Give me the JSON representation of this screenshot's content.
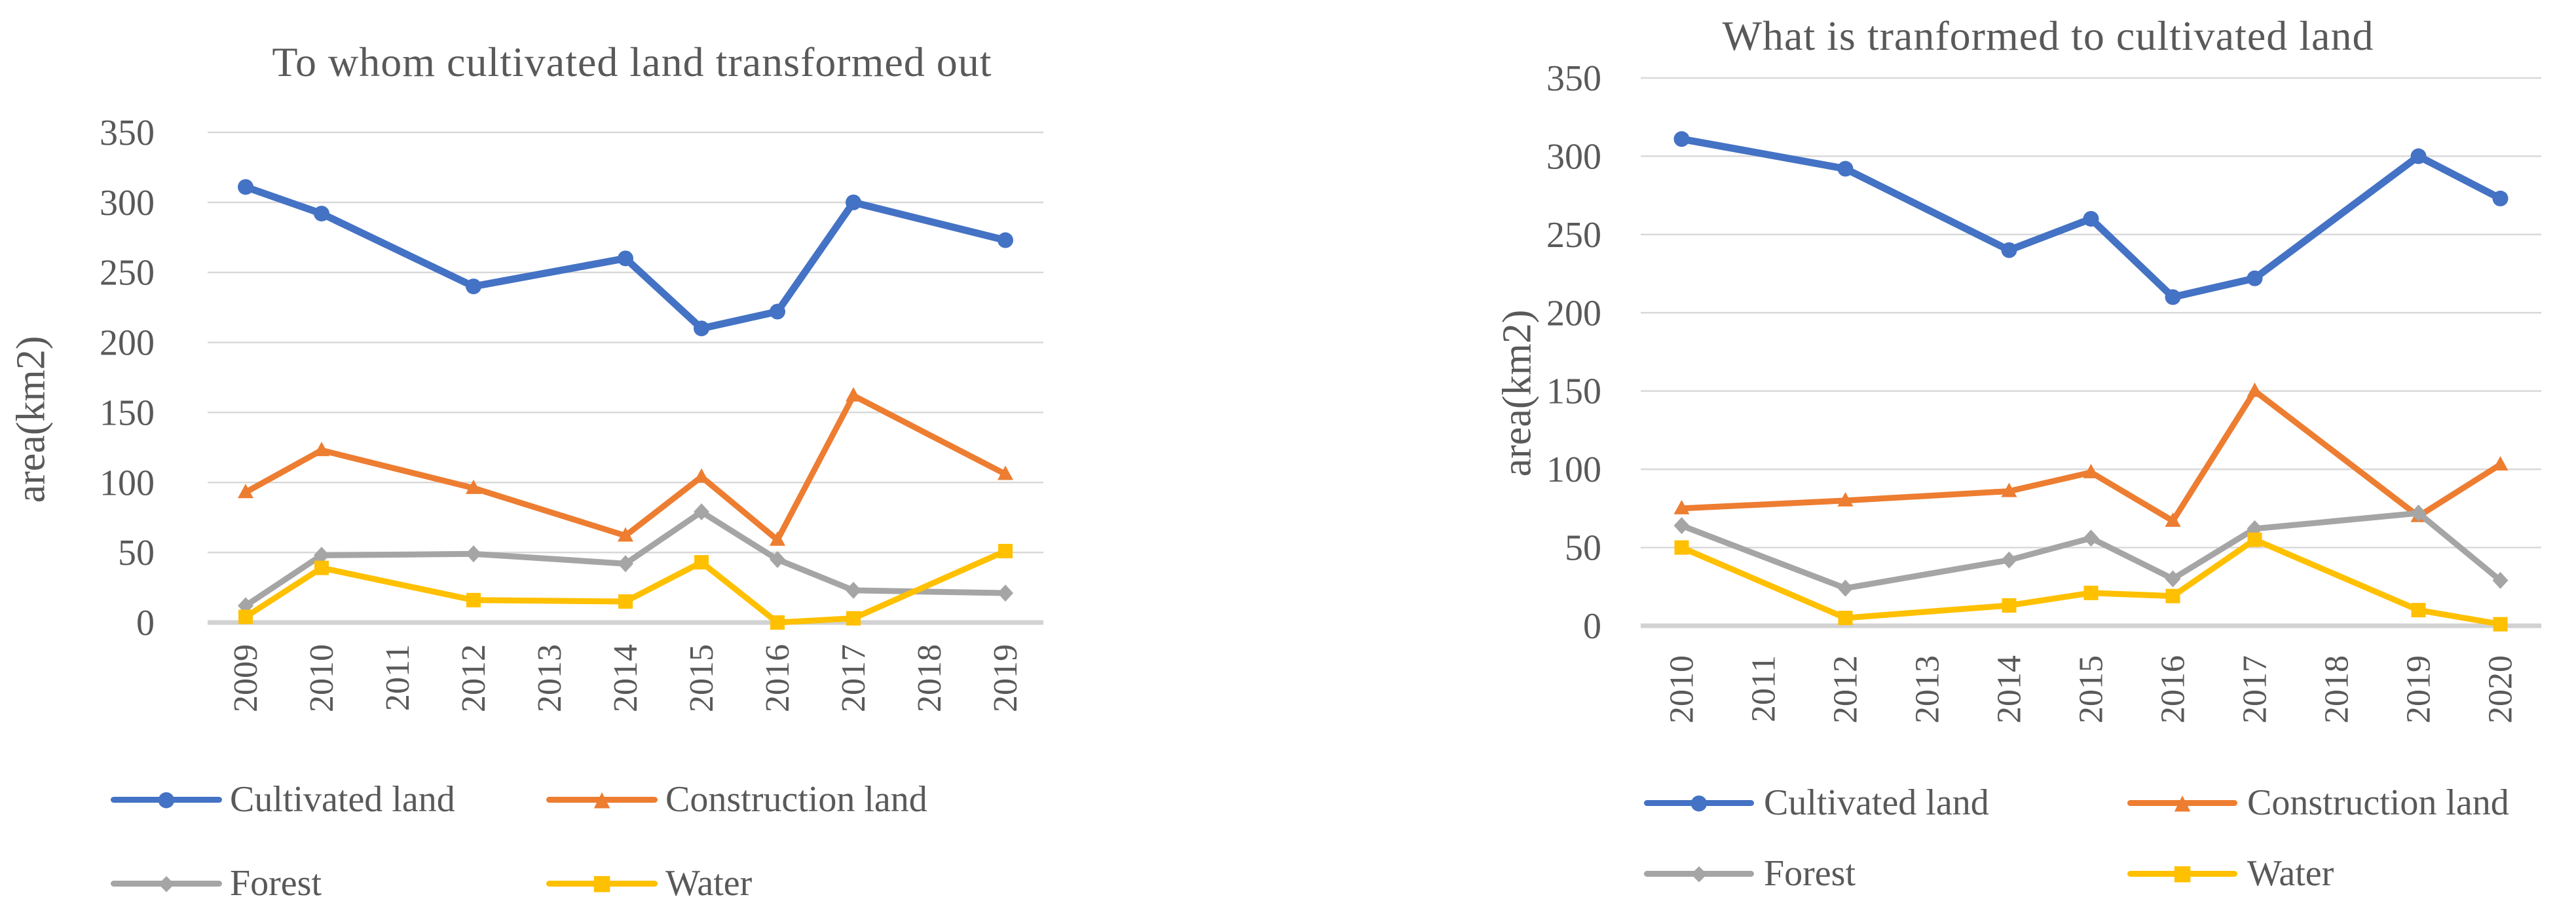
{
  "page": {
    "background": "#ffffff",
    "text_color": "#595959",
    "gridline_color": "#D9D9D9",
    "axis_line_color": "#D2D2D2"
  },
  "chart_data": [
    {
      "type": "line",
      "title": "To whom cultivated land transformed out",
      "xlabel": "",
      "ylabel": "area(km2)",
      "ylim": [
        0,
        350
      ],
      "y_ticks": [
        350,
        300,
        250,
        200,
        150,
        100,
        50,
        0
      ],
      "grid": "horizontal",
      "legend_position": "bottom",
      "categories": [
        "2009",
        "2010",
        "2011",
        "2012",
        "2013",
        "2014",
        "2015",
        "2016",
        "2017",
        "2018",
        "2019"
      ],
      "series": [
        {
          "name": "Cultivated land",
          "color": "#4472C4",
          "marker": "circle",
          "years": [
            "2009",
            "2010",
            "2012",
            "2014",
            "2015",
            "2016",
            "2017",
            "2019"
          ],
          "values": [
            311,
            292,
            240,
            260,
            210,
            222,
            300,
            273
          ]
        },
        {
          "name": "Construction land",
          "color": "#ED7D31",
          "marker": "triangle",
          "years": [
            "2009",
            "2010",
            "2012",
            "2014",
            "2015",
            "2016",
            "2017",
            "2019"
          ],
          "values": [
            93,
            123,
            96,
            62,
            104,
            59,
            162,
            106
          ]
        },
        {
          "name": "Forest",
          "color": "#A5A5A5",
          "marker": "diamond",
          "years": [
            "2009",
            "2010",
            "2012",
            "2014",
            "2015",
            "2016",
            "2017",
            "2019"
          ],
          "values": [
            12,
            48,
            49,
            42,
            79,
            45,
            23,
            21
          ]
        },
        {
          "name": "Water",
          "color": "#FFC000",
          "marker": "square",
          "years": [
            "2009",
            "2010",
            "2012",
            "2014",
            "2015",
            "2016",
            "2017",
            "2019"
          ],
          "values": [
            4,
            39,
            16,
            15,
            43,
            0,
            3,
            51
          ]
        }
      ]
    },
    {
      "type": "line",
      "title": "What is tranformed to cultivated land",
      "xlabel": "",
      "ylabel": "area(km2)",
      "ylim": [
        0,
        350
      ],
      "y_ticks": [
        350,
        300,
        250,
        200,
        150,
        100,
        50,
        0
      ],
      "grid": "horizontal",
      "legend_position": "bottom",
      "categories": [
        "2010",
        "2011",
        "2012",
        "2013",
        "2014",
        "2015",
        "2016",
        "2017",
        "2018",
        "2019",
        "2020"
      ],
      "series": [
        {
          "name": "Cultivated land",
          "color": "#4472C4",
          "marker": "circle",
          "years": [
            "2010",
            "2012",
            "2014",
            "2015",
            "2016",
            "2017",
            "2019",
            "2020"
          ],
          "values": [
            311,
            292,
            240,
            260,
            210,
            222,
            300,
            273
          ]
        },
        {
          "name": "Construction land",
          "color": "#ED7D31",
          "marker": "triangle",
          "years": [
            "2010",
            "2012",
            "2014",
            "2015",
            "2016",
            "2017",
            "2019",
            "2020"
          ],
          "values": [
            75,
            80,
            86,
            98,
            67,
            150,
            70,
            103
          ]
        },
        {
          "name": "Forest",
          "color": "#A5A5A5",
          "marker": "diamond",
          "years": [
            "2010",
            "2012",
            "2014",
            "2015",
            "2016",
            "2017",
            "2019",
            "2020"
          ],
          "values": [
            64,
            24,
            42,
            56,
            30,
            62,
            72,
            29
          ]
        },
        {
          "name": "Water",
          "color": "#FFC000",
          "marker": "square",
          "years": [
            "2010",
            "2012",
            "2014",
            "2015",
            "2016",
            "2017",
            "2019",
            "2020"
          ],
          "values": [
            50,
            5,
            13,
            21,
            19,
            55,
            10,
            1
          ]
        }
      ]
    }
  ]
}
